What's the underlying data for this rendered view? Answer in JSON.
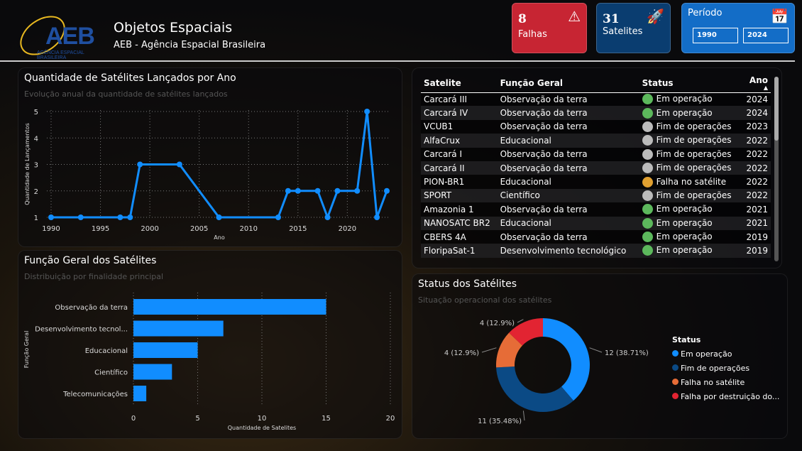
{
  "header": {
    "logo_text": "AEB",
    "logo_sub": "AGÊNCIA ESPACIAL BRASILEIRA",
    "title": "Objetos Espaciais",
    "subtitle": "AEB - Agência Espacial Brasileira"
  },
  "cards": {
    "falhas": {
      "value": "8",
      "label": "Falhas",
      "icon": "warning-icon",
      "color": "#dc2837"
    },
    "satelites": {
      "value": "31",
      "label": "Satelites",
      "icon": "rocket-icon",
      "color": "#0a4682"
    },
    "periodo": {
      "label": "Período",
      "icon": "calendar-icon",
      "start": "1990",
      "end": "2024",
      "color": "#1478dc"
    }
  },
  "chart_data": [
    {
      "type": "line",
      "title": "Quantidade de Satélites Lançados por Ano",
      "subtitle": "Evolução anual da quantidade de satélites lançados",
      "xlabel": "Ano",
      "ylabel": "Quantidade de Lançamentos",
      "x": [
        1990,
        1993,
        1997,
        1998,
        1999,
        2003,
        2007,
        2013,
        2014,
        2015,
        2017,
        2018,
        2019,
        2021,
        2022,
        2023,
        2024
      ],
      "y": [
        1,
        1,
        1,
        1,
        3,
        3,
        1,
        1,
        2,
        2,
        2,
        1,
        2,
        2,
        5,
        1,
        2
      ],
      "xticks": [
        1990,
        1995,
        2000,
        2005,
        2010,
        2015,
        2020
      ],
      "yticks": [
        1,
        2,
        3,
        4,
        5
      ],
      "xlim": [
        1990,
        2024
      ],
      "ylim": [
        1,
        5
      ],
      "grid": true,
      "color": "#118dff"
    },
    {
      "type": "bar",
      "orientation": "horizontal",
      "title": "Função Geral dos Satélites",
      "subtitle": "Distribuição por finalidade principal",
      "xlabel": "Quantidade de Satelites",
      "ylabel": "Função Geral",
      "categories": [
        "Observação da terra",
        "Desenvolvimento tecnol...",
        "Educacional",
        "Científico",
        "Telecomunicações"
      ],
      "values": [
        15,
        7,
        5,
        3,
        1
      ],
      "xticks": [
        0,
        5,
        10,
        15,
        20
      ],
      "xlim": [
        0,
        20
      ],
      "grid": true,
      "color": "#118dff"
    },
    {
      "type": "pie",
      "donut": true,
      "title": "Status dos Satélites",
      "subtitle": "Situação operacional dos satélites",
      "legend_title": "Status",
      "legend": "right",
      "categories": [
        "Em operação",
        "Fim de operações",
        "Falha no satélite",
        "Falha por destruição do..."
      ],
      "values": [
        12,
        11,
        4,
        4
      ],
      "labels": [
        "12 (38.71%)",
        "11 (35.48%)",
        "4 (12.9%)",
        "4 (12.9%)"
      ],
      "colors": [
        "#118dff",
        "#0b4a85",
        "#e66c37",
        "#e22432"
      ]
    }
  ],
  "table": {
    "columns": [
      "Satelite",
      "Função Geral",
      "Status",
      "Ano"
    ],
    "sort_icon": "sort-up-icon",
    "rows": [
      [
        "Carcará III",
        "Observação da terra",
        "Em operação",
        "2024"
      ],
      [
        "Carcará IV",
        "Observação da terra",
        "Em operação",
        "2024"
      ],
      [
        "VCUB1",
        "Observação da terra",
        "Fim de operações",
        "2023"
      ],
      [
        "AlfaCrux",
        "Educacional",
        "Fim de operações",
        "2022"
      ],
      [
        "Carcará I",
        "Observação da terra",
        "Fim de operações",
        "2022"
      ],
      [
        "Carcará II",
        "Observação da terra",
        "Fim de operações",
        "2022"
      ],
      [
        "PION-BR1",
        "Educacional",
        "Falha no satélite",
        "2022"
      ],
      [
        "SPORT",
        "Científico",
        "Fim de operações",
        "2022"
      ],
      [
        "Amazonia 1",
        "Observação da terra",
        "Em operação",
        "2021"
      ],
      [
        "NANOSATC BR2",
        "Educacional",
        "Em operação",
        "2021"
      ],
      [
        "CBERS 4A",
        "Observação da terra",
        "Em operação",
        "2019"
      ],
      [
        "FloripaSat-1",
        "Desenvolvimento tecnológico",
        "Em operação",
        "2019"
      ]
    ],
    "status_colors": {
      "Em operação": "#5cb85c",
      "Fim de operações": "#bbbbbb",
      "Falha no satélite": "#e0a030"
    }
  }
}
